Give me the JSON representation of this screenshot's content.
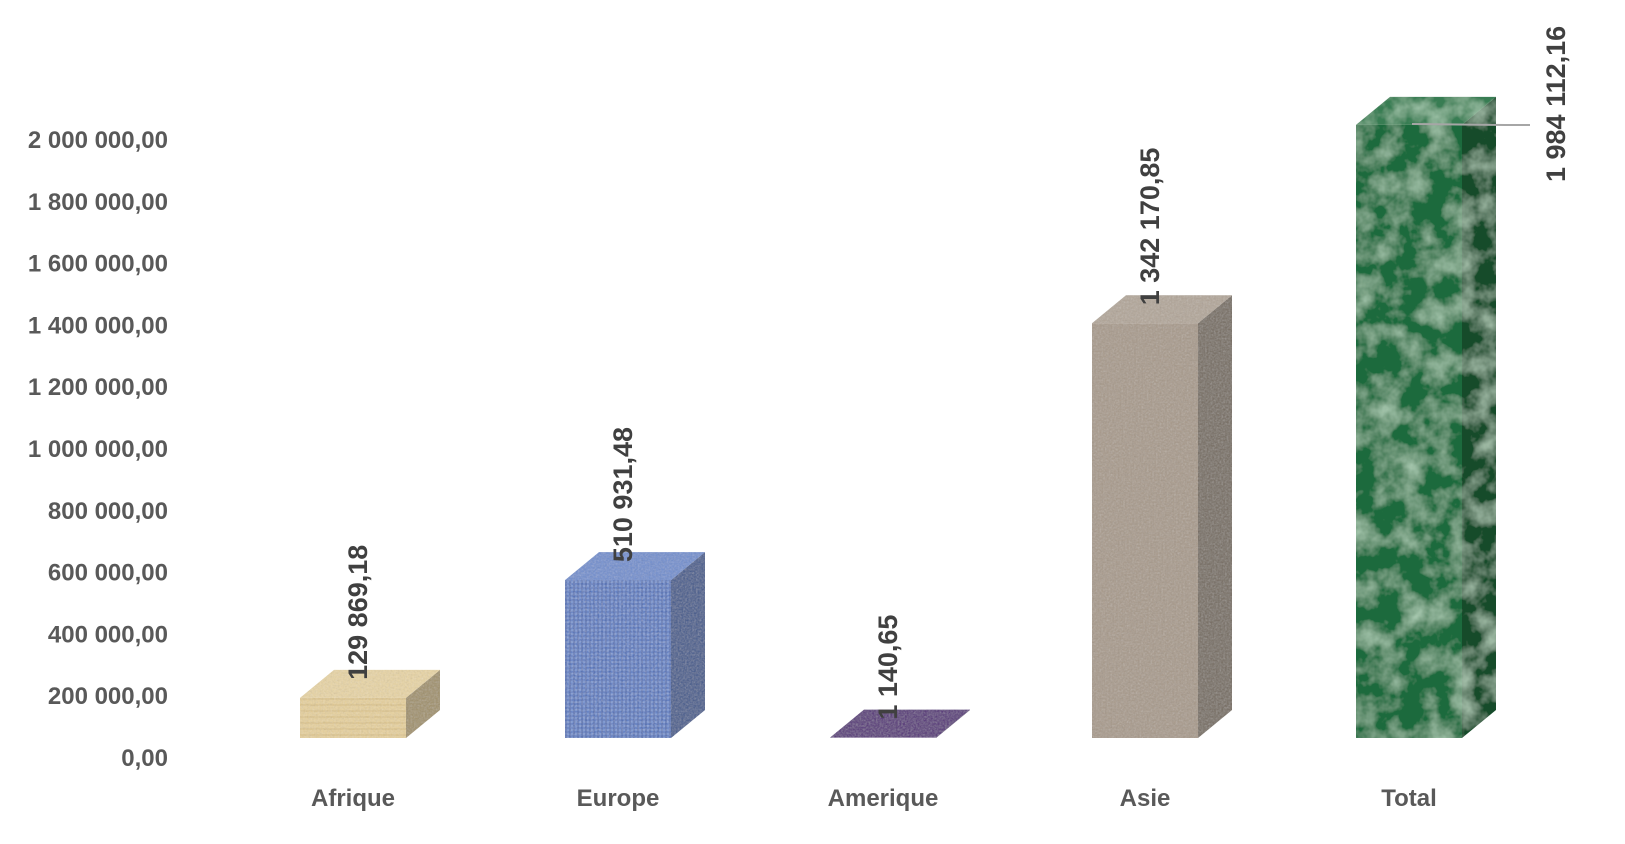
{
  "chart_data": {
    "type": "bar",
    "style": "3d-column",
    "categories": [
      "Afrique",
      "Europe",
      "Amerique",
      "Asie",
      "Total"
    ],
    "values": [
      129869.18,
      510931.48,
      1140.65,
      1342170.85,
      1984112.16
    ],
    "data_labels": [
      "129 869,18",
      "510 931,48",
      "1 140,65",
      "1 342 170,85",
      "1 984 112,16"
    ],
    "y_ticks": [
      0,
      200000,
      400000,
      600000,
      800000,
      1000000,
      1200000,
      1400000,
      1600000,
      1800000,
      2000000
    ],
    "y_tick_labels": [
      "0,00",
      "200 000,00",
      "400 000,00",
      "600 000,00",
      "800 000,00",
      "1 000 000,00",
      "1 200 000,00",
      "1 400 000,00",
      "1 600 000,00",
      "1 800 000,00",
      "2 000 000,00"
    ],
    "ylim": [
      0,
      2000000
    ],
    "grid": false,
    "legend": "none",
    "bar_colors": [
      "#e6cf98",
      "#5b7fc8",
      "#3b0f66",
      "#a89a8a",
      "#1e6b3c"
    ],
    "bar_textures": [
      "wood",
      "denim",
      "purple-mesh",
      "granite",
      "green-marble"
    ]
  }
}
